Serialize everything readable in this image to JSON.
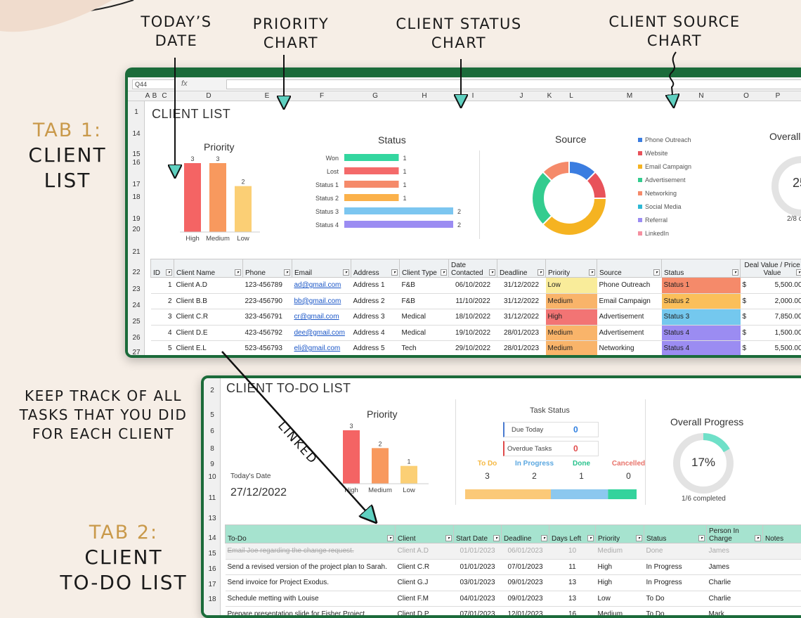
{
  "annotations": {
    "todays_date": [
      "TODAY’S",
      "DATE"
    ],
    "priority_chart": [
      "PRIORITY",
      "CHART"
    ],
    "client_status_chart": [
      "CLIENT STATUS",
      "CHART"
    ],
    "client_source_chart": [
      "CLIENT SOURCE",
      "CHART"
    ],
    "tab1": [
      "TAB 1:",
      "CLIENT",
      "LIST"
    ],
    "keep_track": [
      "KEEP TRACK OF ALL",
      "TASKS THAT YOU DID",
      "FOR EACH CLIENT"
    ],
    "linked": "LINKED",
    "tab2": [
      "TAB 2:",
      "CLIENT",
      "TO-DO LIST"
    ]
  },
  "sheet1": {
    "namebox": "Q44",
    "fx": "fx",
    "col_headers": [
      "A",
      "B",
      "C",
      "D",
      "E",
      "F",
      "G",
      "H",
      "I",
      "J",
      "K",
      "L",
      "M",
      "N",
      "O",
      "P"
    ],
    "row_headers": [
      "1",
      "14",
      "15",
      "16",
      "17",
      "18",
      "19",
      "20",
      "21",
      "22",
      "23",
      "24",
      "25",
      "26",
      "27"
    ],
    "title": "CLIENT LIST",
    "priority_title": "Priority",
    "status_title": "Status",
    "source_title": "Source",
    "overall_title": "Overall",
    "overall_value": "25",
    "overall_sub": "2/8 c",
    "table_headers": [
      "ID",
      "Client Name",
      "Phone",
      "Email",
      "Address",
      "Client Type",
      "Date Contacted",
      "Deadline",
      "Priority",
      "Source",
      "Status",
      "Deal Value / Price Value"
    ],
    "rows": [
      [
        "1",
        "Client A.D",
        "123-456789",
        "ad@gmail.com",
        "Address 1",
        "F&B",
        "06/10/2022",
        "31/12/2022",
        "Low",
        "Phone Outreach",
        "Status 1",
        "$",
        "5,500.00"
      ],
      [
        "2",
        "Client B.B",
        "223-456790",
        "bb@gmail.com",
        "Address 2",
        "F&B",
        "11/10/2022",
        "31/12/2022",
        "Medium",
        "Email Campaign",
        "Status 2",
        "$",
        "2,000.00"
      ],
      [
        "3",
        "Client C.R",
        "323-456791",
        "cr@gmail.com",
        "Address 3",
        "Medical",
        "18/10/2022",
        "31/12/2022",
        "High",
        "Advertisement",
        "Status 3",
        "$",
        "7,850.00"
      ],
      [
        "4",
        "Client D.E",
        "423-456792",
        "dee@gmail.com",
        "Address 4",
        "Medical",
        "19/10/2022",
        "28/01/2023",
        "Medium",
        "Advertisement",
        "Status 4",
        "$",
        "1,500.00"
      ],
      [
        "5",
        "Client E.L",
        "523-456793",
        "eli@gmail.com",
        "Address 5",
        "Tech",
        "29/10/2022",
        "28/01/2023",
        "Medium",
        "Networking",
        "Status 4",
        "$",
        "5,500.00"
      ]
    ],
    "priority_colors": {
      "Low": "#f9ec9a",
      "Medium": "#f9b46a",
      "High": "#f27474"
    },
    "status_colors": {
      "Status 1": "#f58a6a",
      "Status 2": "#fbbf5a",
      "Status 3": "#74c8ee",
      "Status 4": "#9b8cf2"
    },
    "source_legend": [
      {
        "label": "Phone Outreach",
        "color": "#3b7de0"
      },
      {
        "label": "Website",
        "color": "#e8525a"
      },
      {
        "label": "Email Campaign",
        "color": "#f5b321"
      },
      {
        "label": "Advertisement",
        "color": "#33cc8f"
      },
      {
        "label": "Networking",
        "color": "#f58a6a"
      },
      {
        "label": "Social Media",
        "color": "#2db8d4"
      },
      {
        "label": "Referral",
        "color": "#9b8cf2"
      },
      {
        "label": "LinkedIn",
        "color": "#f590a0"
      }
    ]
  },
  "sheet2": {
    "row_headers": [
      "2",
      "5",
      "6",
      "8",
      "9",
      "10",
      "11",
      "13",
      "14",
      "15",
      "16",
      "17",
      "18"
    ],
    "title": "CLIENT TO-DO LIST",
    "todays_date_label": "Today's Date",
    "todays_date_value": "27/12/2022",
    "priority_title": "Priority",
    "task_status_title": "Task Status",
    "due_today_label": "Due Today",
    "due_today_value": "0",
    "overdue_label": "Overdue Tasks",
    "overdue_value": "0",
    "status_counts": [
      {
        "label": "To Do",
        "value": "3",
        "color": "#f5b945"
      },
      {
        "label": "In Progress",
        "value": "2",
        "color": "#5aa7e0"
      },
      {
        "label": "Done",
        "value": "1",
        "color": "#27c28c"
      },
      {
        "label": "Cancelled",
        "value": "0",
        "color": "#e8736a"
      }
    ],
    "overall_title": "Overall Progress",
    "overall_value": "17%",
    "overall_progress": 0.17,
    "overall_sub": "1/6 completed",
    "table_headers": [
      "To-Do",
      "Client",
      "Start Date",
      "Deadline",
      "Days Left",
      "Priority",
      "Status",
      "Person In Charge",
      "Notes"
    ],
    "rows": [
      [
        "Email Joe regarding the change request.",
        "Client A.D",
        "01/01/2023",
        "06/01/2023",
        "10",
        "Medium",
        "Done",
        "James",
        ""
      ],
      [
        "Send a revised version of the project plan to Sarah.",
        "Client C.R",
        "01/01/2023",
        "07/01/2023",
        "11",
        "High",
        "In Progress",
        "James",
        ""
      ],
      [
        "Send invoice for Project Exodus.",
        "Client G.J",
        "03/01/2023",
        "09/01/2023",
        "13",
        "High",
        "In Progress",
        "Charlie",
        ""
      ],
      [
        "Schedule metting with Louise",
        "Client F.M",
        "04/01/2023",
        "09/01/2023",
        "13",
        "Low",
        "To Do",
        "Charlie",
        ""
      ],
      [
        "Prepare presentation slide for Fisher Project",
        "Client D.P",
        "07/01/2023",
        "12/01/2023",
        "16",
        "Medium",
        "To Do",
        "Mark",
        ""
      ]
    ]
  },
  "chart_data": [
    {
      "type": "bar",
      "title": "Priority",
      "categories": [
        "High",
        "Medium",
        "Low"
      ],
      "values": [
        3,
        3,
        2
      ],
      "colors": [
        "#f46464",
        "#f8995e",
        "#fbcf75"
      ]
    },
    {
      "type": "bar",
      "orientation": "horizontal",
      "title": "Status",
      "categories": [
        "Won",
        "Lost",
        "Status 1",
        "Status 2",
        "Status 3",
        "Status 4"
      ],
      "values": [
        1,
        1,
        1,
        1,
        2,
        2
      ],
      "colors": [
        "#33d69f",
        "#f46a6a",
        "#f58a6a",
        "#fbb14a",
        "#7cc6f0",
        "#9b8cf2"
      ]
    },
    {
      "type": "pie",
      "title": "Source",
      "donut": true,
      "categories": [
        "Phone Outreach",
        "Website",
        "Email Campaign",
        "Advertisement",
        "Networking"
      ],
      "values": [
        1,
        1,
        3,
        2,
        1
      ],
      "colors": [
        "#3b7de0",
        "#e8525a",
        "#f5b321",
        "#33cc8f",
        "#f58a6a"
      ]
    },
    {
      "type": "bar",
      "title": "Priority",
      "categories": [
        "High",
        "Medium",
        "Low"
      ],
      "values": [
        3,
        2,
        1
      ],
      "colors": [
        "#f46464",
        "#f8995e",
        "#fbcf75"
      ]
    }
  ]
}
